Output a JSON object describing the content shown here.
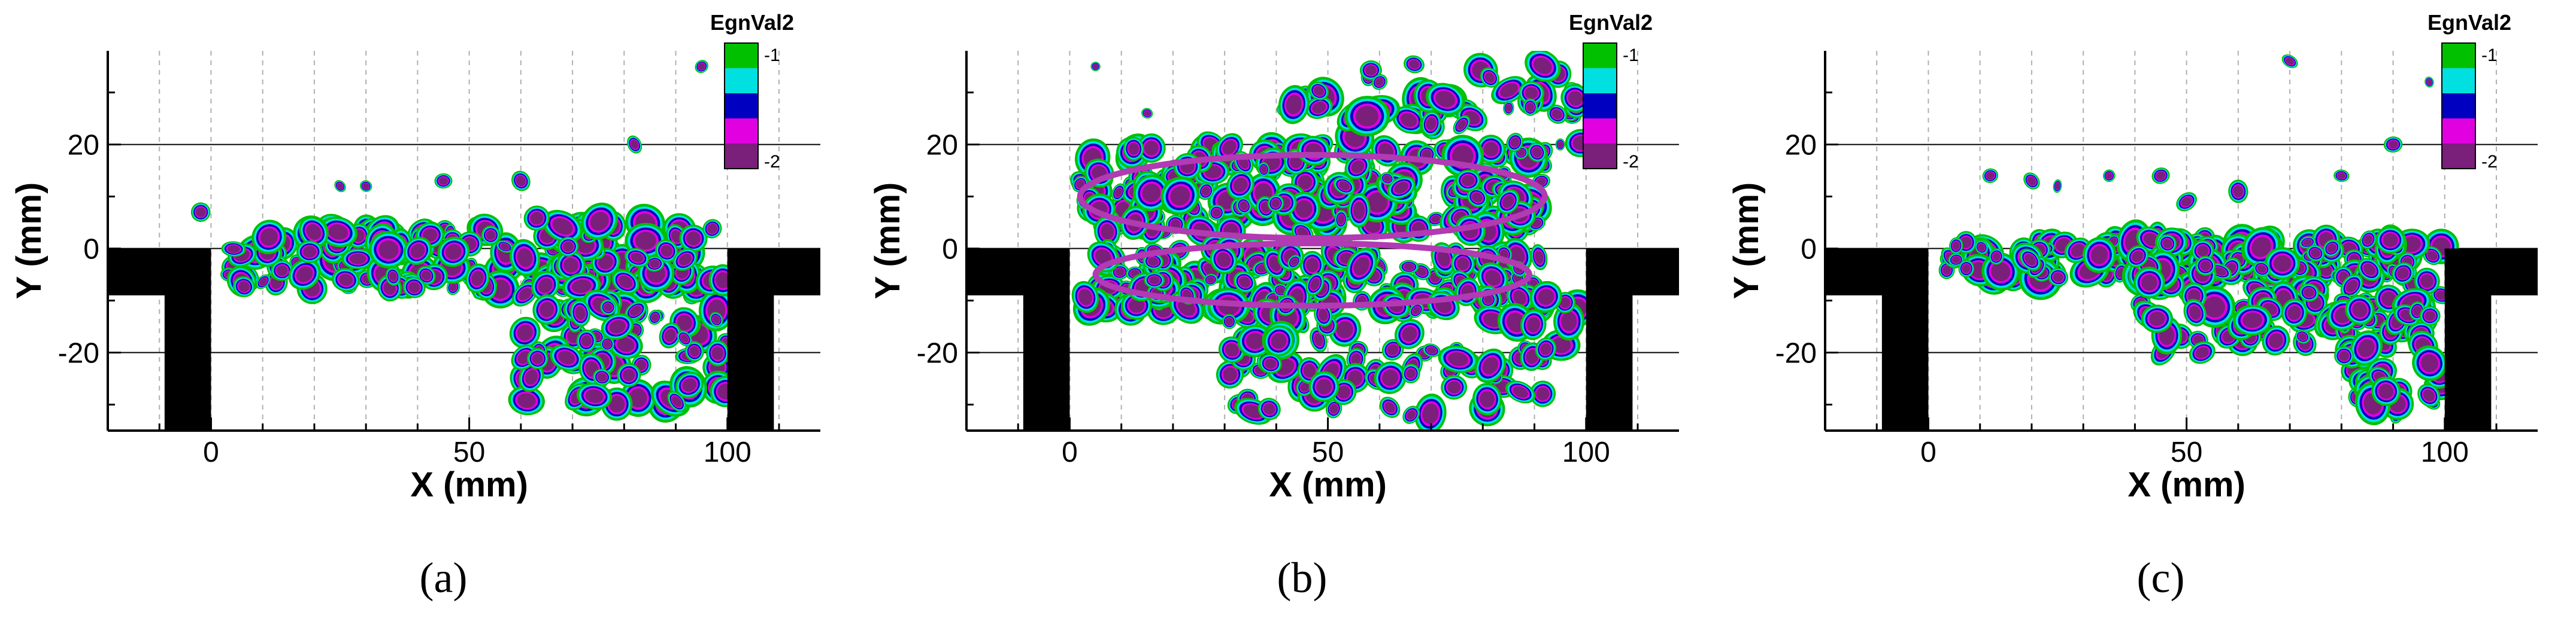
{
  "chart_data": [
    {
      "type": "heatmap",
      "panel_label": "(a)",
      "xlabel": "X (mm)",
      "ylabel": "Y (mm)",
      "xlim": [
        -20,
        118
      ],
      "ylim": [
        -35,
        38
      ],
      "xticks": [
        0,
        50,
        100
      ],
      "yticks": [
        20,
        0,
        -20
      ],
      "reference_lines_y": [
        20,
        0,
        -20
      ],
      "vertical_dashed_grid": true,
      "legend": {
        "title": "EgnVal2",
        "max_label": "-1",
        "min_label": "-2",
        "placement": "top-right"
      },
      "colorscale": [
        "#00c000",
        "#00e0e0",
        "#0000c0",
        "#e000e0",
        "#7a1f7a"
      ],
      "blob_regions": [
        {
          "x": [
            2,
            95
          ],
          "y": [
            -8,
            4
          ],
          "density": 150
        },
        {
          "x": [
            60,
            100
          ],
          "y": [
            -30,
            6
          ],
          "density": 110
        }
      ],
      "sparse_points": [
        [
          25,
          12
        ],
        [
          -2,
          7
        ],
        [
          60,
          13
        ],
        [
          82,
          20
        ],
        [
          95,
          35
        ],
        [
          45,
          13
        ],
        [
          30,
          12
        ]
      ],
      "circles": []
    },
    {
      "type": "heatmap",
      "panel_label": "(b)",
      "xlabel": "X (mm)",
      "ylabel": "Y (mm)",
      "xlim": [
        -20,
        118
      ],
      "ylim": [
        -35,
        38
      ],
      "xticks": [
        0,
        50,
        100
      ],
      "yticks": [
        20,
        0,
        -20
      ],
      "reference_lines_y": [
        20,
        0,
        -20
      ],
      "vertical_dashed_grid": true,
      "legend": {
        "title": "EgnVal2",
        "max_label": "-1",
        "min_label": "-2",
        "placement": "top-right"
      },
      "colorscale": [
        "#00c000",
        "#00e0e0",
        "#0000c0",
        "#e000e0",
        "#7a1f7a"
      ],
      "blob_regions": [
        {
          "x": [
            2,
            92
          ],
          "y": [
            3,
            20
          ],
          "density": 200
        },
        {
          "x": [
            2,
            92
          ],
          "y": [
            -12,
            0
          ],
          "density": 150
        },
        {
          "x": [
            30,
            100
          ],
          "y": [
            -32,
            -8
          ],
          "density": 90
        },
        {
          "x": [
            40,
            100
          ],
          "y": [
            20,
            36
          ],
          "density": 45
        }
      ],
      "sparse_points": [
        [
          5,
          35
        ],
        [
          15,
          26
        ],
        [
          60,
          32
        ],
        [
          85,
          27
        ],
        [
          95,
          20
        ],
        [
          70,
          24
        ]
      ],
      "circles": [
        {
          "cx": 47,
          "cy": 10,
          "rx": 45,
          "ry": 8
        },
        {
          "cx": 47,
          "cy": -5,
          "rx": 42,
          "ry": 6
        }
      ]
    },
    {
      "type": "heatmap",
      "panel_label": "(c)",
      "xlabel": "X (mm)",
      "ylabel": "Y (mm)",
      "xlim": [
        -20,
        118
      ],
      "ylim": [
        -35,
        38
      ],
      "xticks": [
        0,
        50,
        100
      ],
      "yticks": [
        20,
        0,
        -20
      ],
      "reference_lines_y": [
        20,
        0,
        -20
      ],
      "vertical_dashed_grid": true,
      "legend": {
        "title": "EgnVal2",
        "max_label": "-1",
        "min_label": "-2",
        "placement": "top-right"
      },
      "colorscale": [
        "#00c000",
        "#00e0e0",
        "#0000c0",
        "#e000e0",
        "#7a1f7a"
      ],
      "blob_regions": [
        {
          "x": [
            2,
            100
          ],
          "y": [
            -6,
            2
          ],
          "density": 140
        },
        {
          "x": [
            40,
            100
          ],
          "y": [
            -20,
            2
          ],
          "density": 90
        },
        {
          "x": [
            80,
            100
          ],
          "y": [
            -32,
            -10
          ],
          "density": 50
        }
      ],
      "sparse_points": [
        [
          12,
          14
        ],
        [
          20,
          13
        ],
        [
          25,
          12
        ],
        [
          35,
          14
        ],
        [
          45,
          14
        ],
        [
          50,
          9
        ],
        [
          60,
          11
        ],
        [
          70,
          36
        ],
        [
          80,
          14
        ],
        [
          90,
          20
        ],
        [
          97,
          32
        ]
      ],
      "circles": []
    }
  ]
}
